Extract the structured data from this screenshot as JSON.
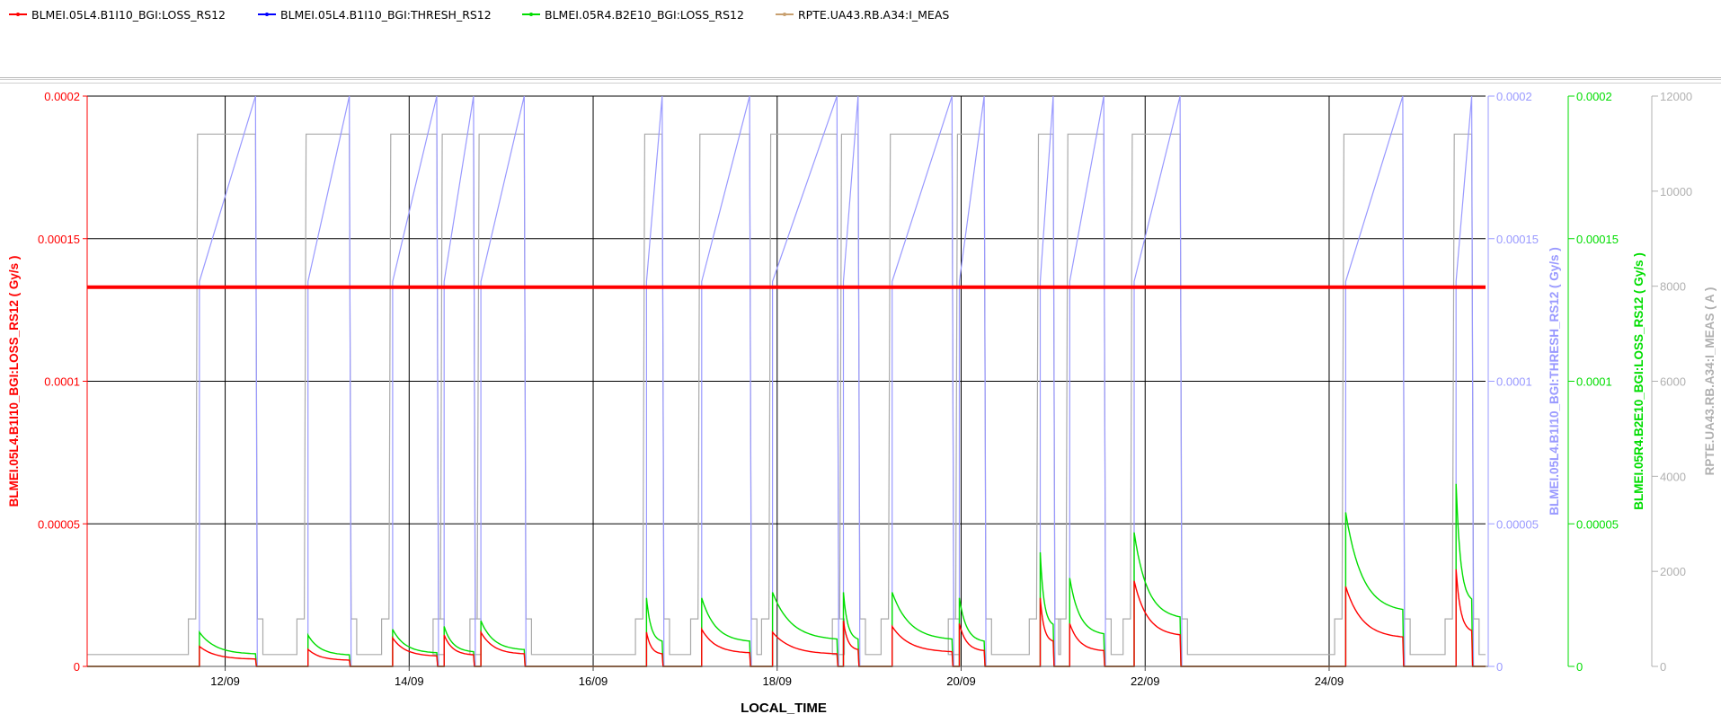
{
  "legend": [
    {
      "label": "BLMEI.05L4.B1I10_BGI:LOSS_RS12",
      "color": "#ff0000"
    },
    {
      "label": "BLMEI.05L4.B1I10_BGI:THRESH_RS12",
      "color": "#0000ff"
    },
    {
      "label": "BLMEI.05R4.B2E10_BGI:LOSS_RS12",
      "color": "#00dd00"
    },
    {
      "label": "RPTE.UA43.RB.A34:I_MEAS",
      "color": "#c8a070"
    }
  ],
  "chart_data": {
    "type": "line",
    "xlabel": "LOCAL_TIME",
    "x_range_days": [
      10.5,
      25.7
    ],
    "x_ticks": [
      {
        "day": 12,
        "label": "12/09"
      },
      {
        "day": 14,
        "label": "14/09"
      },
      {
        "day": 16,
        "label": "16/09"
      },
      {
        "day": 18,
        "label": "18/09"
      },
      {
        "day": 20,
        "label": "20/09"
      },
      {
        "day": 22,
        "label": "22/09"
      },
      {
        "day": 24,
        "label": "24/09"
      }
    ],
    "grid": true,
    "axes": [
      {
        "id": "loss_l4",
        "side": "left",
        "color": "#ff0000",
        "label": "BLMEI.05L4.B1I10_BGI:LOSS_RS12 ( Gy/s )",
        "range": [
          0,
          0.0002
        ],
        "ticks": [
          {
            "v": 0,
            "label": "0"
          },
          {
            "v": 5e-05,
            "label": "0.00005"
          },
          {
            "v": 0.0001,
            "label": "0.0001"
          },
          {
            "v": 0.00015,
            "label": "0.00015"
          },
          {
            "v": 0.0002,
            "label": "0.0002"
          }
        ]
      },
      {
        "id": "thresh_l4",
        "side": "right",
        "color": "#9999ff",
        "label": "BLMEI.05L4.B1I10_BGI:THRESH_RS12 ( Gy/s )",
        "range": [
          0,
          0.0002
        ],
        "ticks": [
          {
            "v": 0,
            "label": "0"
          },
          {
            "v": 5e-05,
            "label": "0.00005"
          },
          {
            "v": 0.0001,
            "label": "0.0001"
          },
          {
            "v": 0.00015,
            "label": "0.00015"
          },
          {
            "v": 0.0002,
            "label": "0.0002"
          }
        ]
      },
      {
        "id": "loss_r4",
        "side": "right",
        "color": "#00dd00",
        "label": "BLMEI.05R4.B2E10_BGI:LOSS_RS12 ( Gy/s )",
        "range": [
          0,
          0.0002
        ],
        "ticks": [
          {
            "v": 0,
            "label": "0"
          },
          {
            "v": 5e-05,
            "label": "0.00005"
          },
          {
            "v": 0.0001,
            "label": "0.0001"
          },
          {
            "v": 0.00015,
            "label": "0.00015"
          },
          {
            "v": 0.0002,
            "label": "0.0002"
          }
        ]
      },
      {
        "id": "current",
        "side": "right",
        "color": "#b0b0b0",
        "label": "RPTE.UA43.RB.A34:I_MEAS ( A )",
        "range": [
          0,
          12000
        ],
        "ticks": [
          {
            "v": 0,
            "label": "0"
          },
          {
            "v": 2000,
            "label": "2000"
          },
          {
            "v": 4000,
            "label": "4000"
          },
          {
            "v": 6000,
            "label": "6000"
          },
          {
            "v": 8000,
            "label": "8000"
          },
          {
            "v": 10000,
            "label": "10000"
          },
          {
            "v": 12000,
            "label": "12000"
          }
        ]
      }
    ],
    "threshold_line": {
      "value": 0.000133,
      "color": "#ff0000"
    },
    "cycles": [
      {
        "start": 11.72,
        "end": 12.33,
        "peak_r4": 1.2e-05,
        "peak_l4": 7e-06,
        "current_flat_top": 11200
      },
      {
        "start": 12.9,
        "end": 13.35,
        "peak_r4": 1.1e-05,
        "peak_l4": 6e-06,
        "current_flat_top": 11200
      },
      {
        "start": 13.82,
        "end": 14.3,
        "peak_r4": 1.3e-05,
        "peak_l4": 1e-05,
        "current_flat_top": 11200
      },
      {
        "start": 14.38,
        "end": 14.7,
        "peak_r4": 1.4e-05,
        "peak_l4": 1.1e-05,
        "current_flat_top": 11200
      },
      {
        "start": 14.78,
        "end": 15.25,
        "peak_r4": 1.6e-05,
        "peak_l4": 1.2e-05,
        "current_flat_top": 11200
      },
      {
        "start": 16.58,
        "end": 16.75,
        "peak_r4": 2.4e-05,
        "peak_l4": 1.2e-05,
        "current_flat_top": 11200
      },
      {
        "start": 17.18,
        "end": 17.7,
        "peak_r4": 2.4e-05,
        "peak_l4": 1.3e-05,
        "current_flat_top": 11200
      },
      {
        "start": 17.95,
        "end": 18.65,
        "peak_r4": 2.6e-05,
        "peak_l4": 1.2e-05,
        "current_flat_top": 11200
      },
      {
        "start": 18.72,
        "end": 18.88,
        "peak_r4": 2.6e-05,
        "peak_l4": 1.6e-05,
        "current_flat_top": 11200
      },
      {
        "start": 19.25,
        "end": 19.9,
        "peak_r4": 2.6e-05,
        "peak_l4": 1.4e-05,
        "current_flat_top": 11200
      },
      {
        "start": 19.98,
        "end": 20.25,
        "peak_r4": 2.4e-05,
        "peak_l4": 1.5e-05,
        "current_flat_top": 11200
      },
      {
        "start": 20.86,
        "end": 21.0,
        "peak_r4": 4e-05,
        "peak_l4": 2.4e-05,
        "current_flat_top": 11200
      },
      {
        "start": 21.18,
        "end": 21.55,
        "peak_r4": 3.1e-05,
        "peak_l4": 1.5e-05,
        "current_flat_top": 11200
      },
      {
        "start": 21.88,
        "end": 22.38,
        "peak_r4": 4.7e-05,
        "peak_l4": 3e-05,
        "current_flat_top": 11200
      },
      {
        "start": 24.18,
        "end": 24.8,
        "peak_r4": 5.4e-05,
        "peak_l4": 2.8e-05,
        "current_flat_top": 11200
      },
      {
        "start": 25.38,
        "end": 25.55,
        "peak_r4": 6.4e-05,
        "peak_l4": 3.4e-05,
        "current_flat_top": 11200
      }
    ]
  }
}
